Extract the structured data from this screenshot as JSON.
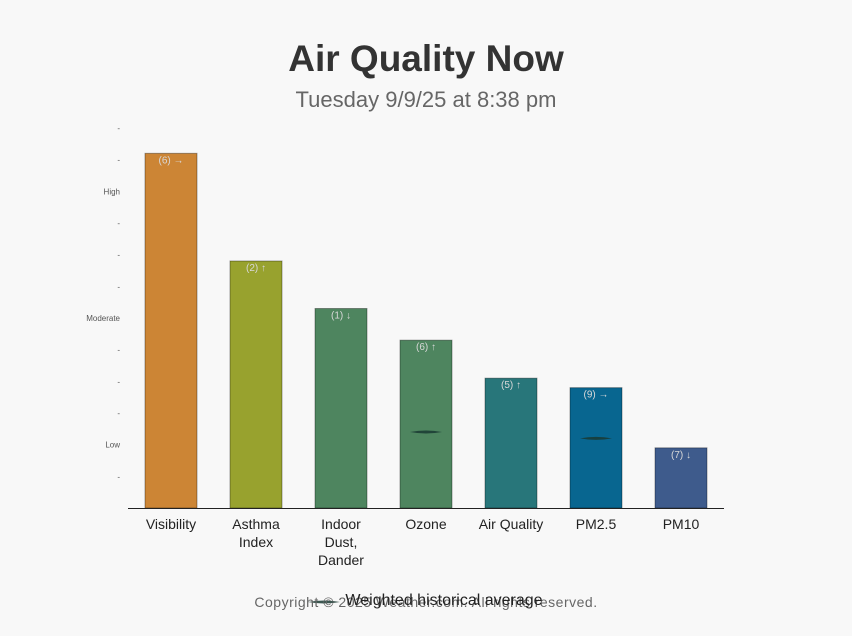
{
  "header": {
    "title": "Air Quality Now",
    "subtitle": "Tuesday 9/9/25 at 8:38 pm"
  },
  "footer": {
    "copyright": "Copyright © 2025 Weather.com. All rights reserved.",
    "legend_note": "Weighted historical average"
  },
  "chart_data": {
    "type": "bar",
    "title": "Air Quality Now",
    "subtitle": "Tuesday 9/9/25 at 8:38 pm",
    "categories": [
      "Visibility",
      "Asthma Index",
      "Indoor Dust, Dander",
      "Ozone",
      "Air Quality",
      "PM2.5",
      "PM10"
    ],
    "category_lines": [
      [
        "Visibility"
      ],
      [
        "Asthma",
        "Index"
      ],
      [
        "Indoor",
        "Dust,",
        "Dander"
      ],
      [
        "Ozone"
      ],
      [
        "Air Quality"
      ],
      [
        "PM2.5"
      ],
      [
        "PM10"
      ]
    ],
    "values": [
      11.2,
      7.8,
      6.3,
      5.3,
      4.1,
      3.8,
      1.9
    ],
    "labels": [
      "(6) →",
      "(2) ↑",
      "(1) ↓",
      "(6) ↑",
      "(5) ↑",
      "(9) →",
      "(7) ↓"
    ],
    "historical_average": [
      null,
      null,
      null,
      2.4,
      null,
      2.2,
      null
    ],
    "colors": [
      "#cc8535",
      "#98a22e",
      "#4e855f",
      "#4e855f",
      "#28767a",
      "#086690",
      "#3e5b8c"
    ],
    "ylim": [
      0,
      12
    ],
    "y_ticks": [
      {
        "value": 1,
        "label": "-"
      },
      {
        "value": 2,
        "label": "Low"
      },
      {
        "value": 3,
        "label": "-"
      },
      {
        "value": 4,
        "label": "-"
      },
      {
        "value": 5,
        "label": "-"
      },
      {
        "value": 6,
        "label": "Moderate"
      },
      {
        "value": 7,
        "label": "-"
      },
      {
        "value": 8,
        "label": "-"
      },
      {
        "value": 9,
        "label": "-"
      },
      {
        "value": 10,
        "label": "High"
      },
      {
        "value": 11,
        "label": "-"
      },
      {
        "value": 12,
        "label": "-"
      }
    ],
    "grid": false,
    "legend": "bottom"
  }
}
